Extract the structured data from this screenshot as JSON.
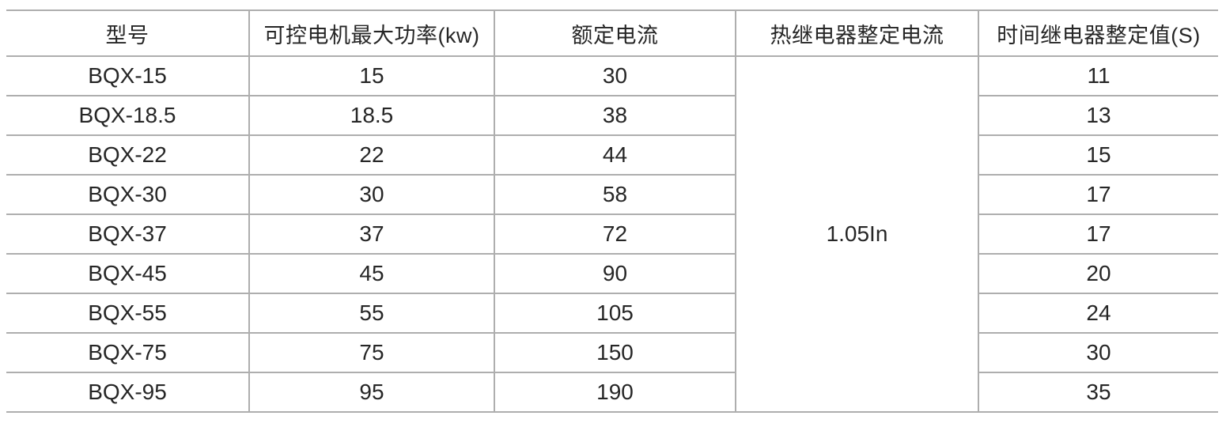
{
  "chart_data": {
    "type": "table",
    "columns": [
      "型号",
      "可控电机最大功率(kw)",
      "额定电流",
      "热继电器整定电流",
      "时间继电器整定值(S)"
    ],
    "rows": [
      {
        "model": "BQX-15",
        "max_power_kw": "15",
        "rated_current": "30",
        "time_relay_setting": "11"
      },
      {
        "model": "BQX-18.5",
        "max_power_kw": "18.5",
        "rated_current": "38",
        "time_relay_setting": "13"
      },
      {
        "model": "BQX-22",
        "max_power_kw": "22",
        "rated_current": "44",
        "time_relay_setting": "15"
      },
      {
        "model": "BQX-30",
        "max_power_kw": "30",
        "rated_current": "58",
        "time_relay_setting": "17"
      },
      {
        "model": "BQX-37",
        "max_power_kw": "37",
        "rated_current": "72",
        "time_relay_setting": "17"
      },
      {
        "model": "BQX-45",
        "max_power_kw": "45",
        "rated_current": "90",
        "time_relay_setting": "20"
      },
      {
        "model": "BQX-55",
        "max_power_kw": "55",
        "rated_current": "105",
        "time_relay_setting": "24"
      },
      {
        "model": "BQX-75",
        "max_power_kw": "75",
        "rated_current": "150",
        "time_relay_setting": "30"
      },
      {
        "model": "BQX-95",
        "max_power_kw": "95",
        "rated_current": "190",
        "time_relay_setting": "35"
      }
    ],
    "merged_cell": {
      "column": "热继电器整定电流",
      "value": "1.05In",
      "rowspan": 9
    },
    "layout": {
      "grid": "horizontal and internal vertical rules only, no outer left/right border",
      "column_4_merged_across_all_data_rows": true
    }
  },
  "colors": {
    "background": "#ffffff",
    "border": "#aeaeae",
    "text": "#262626"
  }
}
